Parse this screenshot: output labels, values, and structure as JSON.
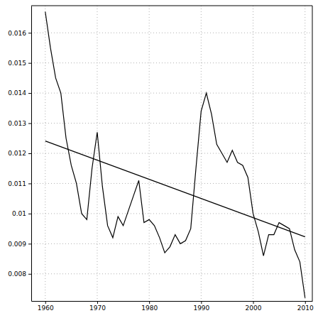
{
  "chart_data": {
    "type": "line",
    "x": [
      1960,
      1961,
      1962,
      1963,
      1964,
      1965,
      1966,
      1967,
      1968,
      1969,
      1970,
      1971,
      1972,
      1973,
      1974,
      1975,
      1976,
      1977,
      1978,
      1979,
      1980,
      1981,
      1982,
      1983,
      1984,
      1985,
      1986,
      1987,
      1988,
      1989,
      1990,
      1991,
      1992,
      1993,
      1994,
      1995,
      1996,
      1997,
      1998,
      1999,
      2000,
      2001,
      2002,
      2003,
      2004,
      2005,
      2006,
      2007,
      2008,
      2009,
      2010
    ],
    "series": [
      {
        "color": "#000000",
        "values": [
          0.0167,
          0.0155,
          0.0145,
          0.014,
          0.0125,
          0.0116,
          0.011,
          0.01,
          0.0098,
          0.0115,
          0.0127,
          0.0109,
          0.0096,
          0.0092,
          0.0099,
          0.0096,
          0.0101,
          0.0106,
          0.0111,
          0.0097,
          0.0098,
          0.0096,
          0.0092,
          0.0087,
          0.0089,
          0.0093,
          0.009,
          0.0091,
          0.0095,
          0.0115,
          0.0134,
          0.014,
          0.0133,
          0.0123,
          0.012,
          0.0117,
          0.0121,
          0.0117,
          0.0116,
          0.0112,
          0.01,
          0.0094,
          0.0086,
          0.0093,
          0.0093,
          0.0097,
          0.0096,
          0.0095,
          0.0088,
          0.0084,
          0.0072
        ]
      },
      {
        "color": "#000000",
        "x": [
          1960,
          2010
        ],
        "values": [
          0.01241,
          0.00923
        ]
      }
    ],
    "xlim": [
      1957.3,
      2011.4
    ],
    "xticks": [
      1960,
      1970,
      1980,
      1990,
      2000,
      2010
    ],
    "ylim": [
      0.0071,
      0.0169
    ],
    "yticks": [
      0.008,
      0.009,
      0.01,
      0.011,
      0.012,
      0.013,
      0.014,
      0.015,
      0.016
    ],
    "grid": true
  }
}
